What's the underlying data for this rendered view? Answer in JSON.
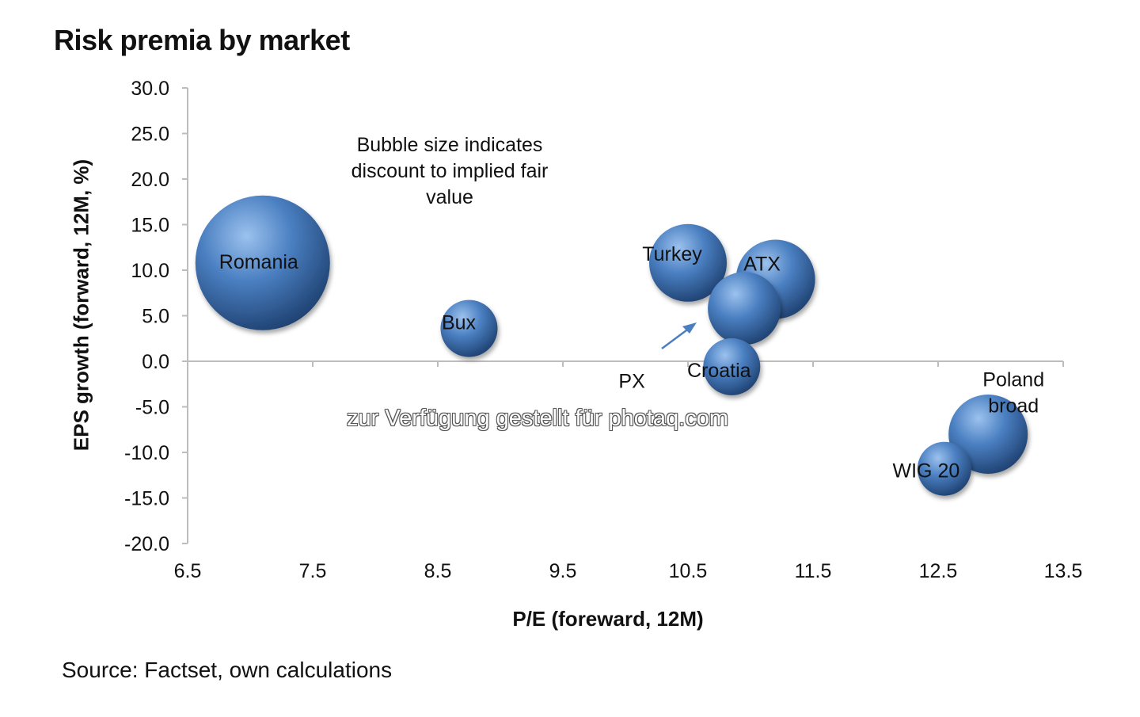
{
  "title": "Risk premia by market",
  "source": "Source: Factset, own calculations",
  "watermark": "zur Verfügung gestellt für photaq.com",
  "chart_data": {
    "type": "bubble",
    "title": "Risk premia by market",
    "xlabel": "P/E (foreward, 12M)",
    "ylabel": "EPS growth (forward, 12M, %)",
    "xlim": [
      6.5,
      13.5
    ],
    "ylim": [
      -20.0,
      30.0
    ],
    "x_ticks": [
      "6.5",
      "7.5",
      "8.5",
      "9.5",
      "10.5",
      "11.5",
      "12.5",
      "13.5"
    ],
    "y_ticks": [
      "30.0",
      "25.0",
      "20.0",
      "15.0",
      "10.0",
      "5.0",
      "0.0",
      "-5.0",
      "-10.0",
      "-15.0",
      "-20.0"
    ],
    "annotation": [
      "Bubble size indicates",
      "discount to implied fair",
      "value"
    ],
    "bubble_color": "#4a7fc1",
    "points": [
      {
        "label": [
          "Romania"
        ],
        "x": 7.1,
        "y": 10.8,
        "size": 85
      },
      {
        "label": [
          "Bux"
        ],
        "x": 8.75,
        "y": 3.6,
        "size": 36
      },
      {
        "label": [
          "Turkey"
        ],
        "x": 10.5,
        "y": 10.8,
        "size": 49
      },
      {
        "label": [
          "PX"
        ],
        "x": 10.95,
        "y": 5.8,
        "size": 46
      },
      {
        "label": [
          "ATX"
        ],
        "x": 11.2,
        "y": 9.0,
        "size": 50
      },
      {
        "label": [
          "Croatia"
        ],
        "x": 10.85,
        "y": -0.6,
        "size": 36
      },
      {
        "label": [
          "Poland",
          "broad"
        ],
        "x": 12.9,
        "y": -8.0,
        "size": 50
      },
      {
        "label": [
          "WIG 20"
        ],
        "x": 12.55,
        "y": -11.8,
        "size": 34
      }
    ]
  }
}
